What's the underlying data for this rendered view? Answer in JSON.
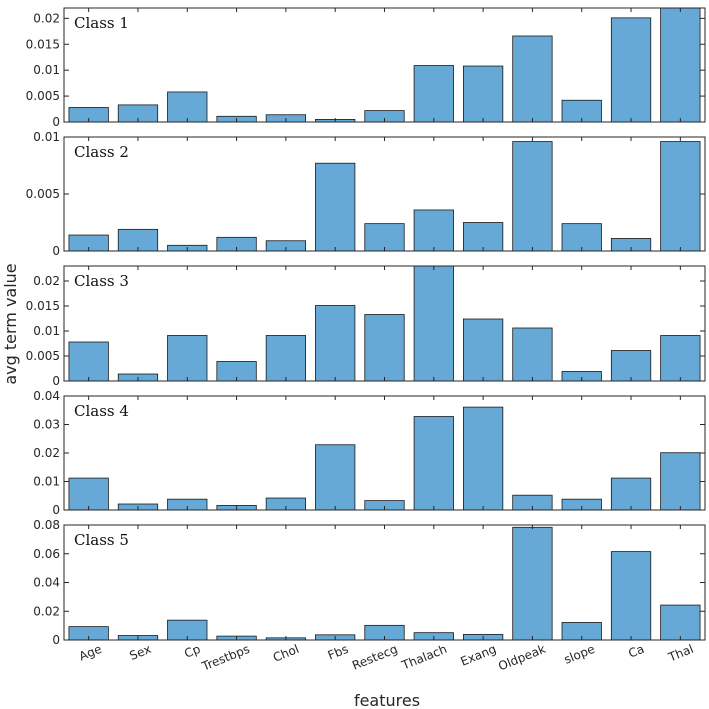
{
  "chart_data": {
    "type": "bar",
    "bar_color": "#66a8d6",
    "edge_color": "#1a1a1a",
    "xlabel": "features",
    "ylabel": "avg term value",
    "categories": [
      "Age",
      "Sex",
      "Cp",
      "Trestbps",
      "Chol",
      "Fbs",
      "Restecg",
      "Thalach",
      "Exang",
      "Oldpeak",
      "slope",
      "Ca",
      "Thal"
    ],
    "panels": [
      {
        "name": "Class 1",
        "ylim": [
          0,
          0.022
        ],
        "yticks": [
          0,
          0.005,
          0.01,
          0.015,
          0.02
        ],
        "ytick_labels": [
          "0",
          "0.005",
          "0.01",
          "0.015",
          "0.02"
        ],
        "values": [
          0.0028,
          0.0033,
          0.0058,
          0.0011,
          0.0014,
          0.0005,
          0.0022,
          0.0109,
          0.0108,
          0.0166,
          0.0042,
          0.0201,
          0.0225
        ]
      },
      {
        "name": "Class 2",
        "ylim": [
          0,
          0.01
        ],
        "yticks": [
          0,
          0.005,
          0.01
        ],
        "ytick_labels": [
          "0",
          "0.005",
          "0.01"
        ],
        "values": [
          0.0014,
          0.0019,
          0.0005,
          0.0012,
          0.0009,
          0.0077,
          0.0024,
          0.0036,
          0.0025,
          0.0096,
          0.0024,
          0.0011,
          0.0096
        ]
      },
      {
        "name": "Class 3",
        "ylim": [
          0,
          0.023
        ],
        "yticks": [
          0,
          0.005,
          0.01,
          0.015,
          0.02
        ],
        "ytick_labels": [
          "0",
          "0.005",
          "0.01",
          "0.015",
          "0.02"
        ],
        "values": [
          0.0078,
          0.0014,
          0.0091,
          0.0039,
          0.0091,
          0.0151,
          0.0133,
          0.0235,
          0.0124,
          0.0106,
          0.0019,
          0.0061,
          0.0091
        ]
      },
      {
        "name": "Class 4",
        "ylim": [
          0,
          0.04
        ],
        "yticks": [
          0,
          0.01,
          0.02,
          0.03,
          0.04
        ],
        "ytick_labels": [
          "0",
          "0.01",
          "0.02",
          "0.03",
          "0.04"
        ],
        "values": [
          0.0112,
          0.0021,
          0.0038,
          0.0016,
          0.0042,
          0.0229,
          0.0033,
          0.0328,
          0.0361,
          0.0052,
          0.0038,
          0.0112,
          0.0201
        ]
      },
      {
        "name": "Class 5",
        "ylim": [
          0,
          0.08
        ],
        "yticks": [
          0,
          0.02,
          0.04,
          0.06,
          0.08
        ],
        "ytick_labels": [
          "0",
          "0.02",
          "0.04",
          "0.06",
          "0.08"
        ],
        "values": [
          0.0093,
          0.0031,
          0.0138,
          0.0027,
          0.0015,
          0.0036,
          0.0102,
          0.0051,
          0.0039,
          0.0784,
          0.0122,
          0.0615,
          0.0243
        ]
      }
    ]
  }
}
